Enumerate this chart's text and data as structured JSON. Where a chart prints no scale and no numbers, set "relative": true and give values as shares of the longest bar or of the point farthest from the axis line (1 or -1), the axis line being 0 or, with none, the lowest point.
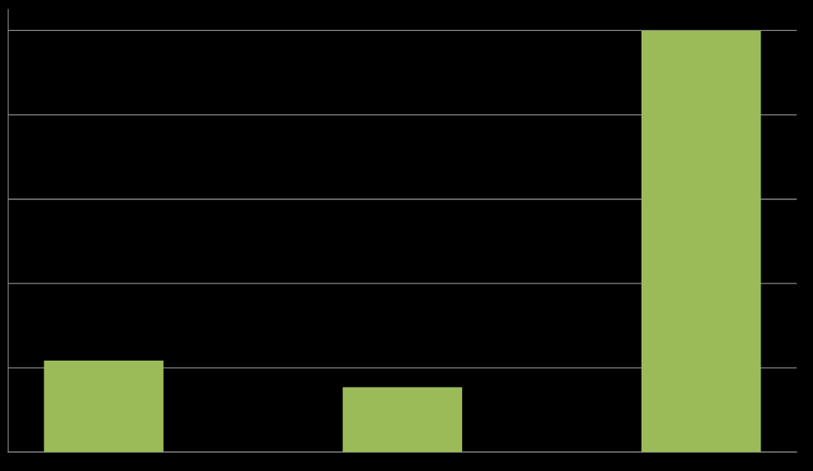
{
  "chart_data": {
    "type": "bar",
    "relative": true,
    "categories": [
      null,
      null,
      null
    ],
    "values": [
      0.217,
      0.154,
      1
    ],
    "color": "#9bbb59",
    "grid": "y",
    "legend": false
  }
}
